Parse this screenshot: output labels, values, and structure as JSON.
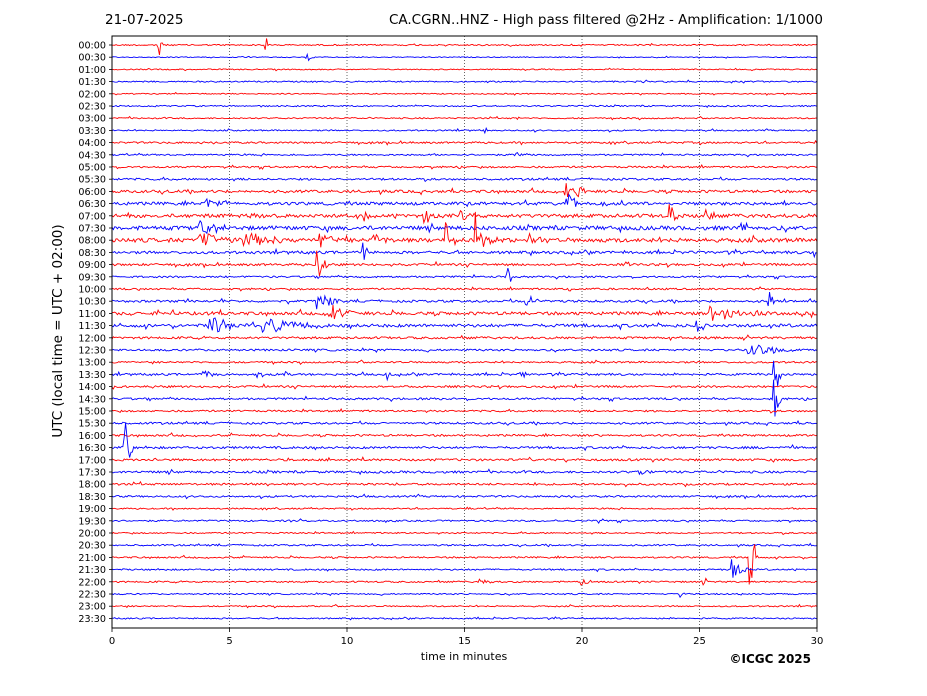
{
  "header": {
    "date": "21-07-2025",
    "title": "CA.CGRN..HNZ - High pass filtered @2Hz - Amplification: 1/1000"
  },
  "footer": {
    "copyright": "©ICGC 2025"
  },
  "chart_data": {
    "type": "line",
    "subtype": "helicorder",
    "xlabel": "time in minutes",
    "ylabel": "UTC (local time = UTC + 02:00)",
    "xlim": [
      0,
      30
    ],
    "xticks": [
      0,
      5,
      10,
      15,
      20,
      25,
      30
    ],
    "grid": "vertical dotted at every 5 minutes",
    "colors": {
      "even_rows": "#ff0000",
      "odd_rows": "#0000ff"
    },
    "rows": [
      "00:00",
      "00:30",
      "01:00",
      "01:30",
      "02:00",
      "02:30",
      "03:00",
      "03:30",
      "04:00",
      "04:30",
      "05:00",
      "05:30",
      "06:00",
      "06:30",
      "07:00",
      "07:30",
      "08:00",
      "08:30",
      "09:00",
      "09:30",
      "10:00",
      "10:30",
      "11:00",
      "11:30",
      "12:00",
      "12:30",
      "13:00",
      "13:30",
      "14:00",
      "14:30",
      "15:00",
      "15:30",
      "16:00",
      "16:30",
      "17:00",
      "17:30",
      "18:00",
      "18:30",
      "19:00",
      "19:30",
      "20:00",
      "20:30",
      "21:00",
      "21:30",
      "22:00",
      "22:30",
      "23:00",
      "23:30"
    ],
    "noise_level": [
      0.3,
      0.2,
      0.25,
      0.3,
      0.25,
      0.3,
      0.3,
      0.3,
      0.4,
      0.35,
      0.4,
      0.45,
      0.6,
      0.7,
      0.8,
      0.9,
      0.9,
      0.6,
      0.5,
      0.4,
      0.4,
      0.5,
      0.7,
      0.7,
      0.5,
      0.45,
      0.4,
      0.45,
      0.45,
      0.45,
      0.4,
      0.45,
      0.45,
      0.5,
      0.5,
      0.5,
      0.45,
      0.4,
      0.3,
      0.35,
      0.3,
      0.35,
      0.35,
      0.35,
      0.35,
      0.3,
      0.3,
      0.3
    ],
    "events": [
      {
        "row": "00:00",
        "t": 2.0,
        "amp": 5.0,
        "dur": 0.15
      },
      {
        "row": "00:00",
        "t": 6.5,
        "amp": 6.0,
        "dur": 0.1
      },
      {
        "row": "00:30",
        "t": 8.3,
        "amp": 0.8,
        "dur": 0.3
      },
      {
        "row": "02:30",
        "t": 19.8,
        "amp": 0.3,
        "dur": 0.2
      },
      {
        "row": "03:00",
        "t": 17.3,
        "amp": 0.3,
        "dur": 0.3
      },
      {
        "row": "03:30",
        "t": 15.9,
        "amp": 0.5,
        "dur": 0.2
      },
      {
        "row": "04:30",
        "t": 17.2,
        "amp": 0.5,
        "dur": 0.3
      },
      {
        "row": "06:00",
        "t": 19.4,
        "amp": 1.2,
        "dur": 0.5
      },
      {
        "row": "06:00",
        "t": 19.9,
        "amp": 1.0,
        "dur": 0.5
      },
      {
        "row": "06:30",
        "t": 19.5,
        "amp": 1.5,
        "dur": 0.6
      },
      {
        "row": "06:30",
        "t": 4.2,
        "amp": 0.6,
        "dur": 0.8
      },
      {
        "row": "07:00",
        "t": 6.0,
        "amp": 0.8,
        "dur": 0.6
      },
      {
        "row": "07:00",
        "t": 10.9,
        "amp": 1.0,
        "dur": 0.6
      },
      {
        "row": "07:00",
        "t": 13.5,
        "amp": 1.0,
        "dur": 0.8
      },
      {
        "row": "07:00",
        "t": 15.0,
        "amp": 0.8,
        "dur": 0.6
      },
      {
        "row": "07:00",
        "t": 23.8,
        "amp": 2.0,
        "dur": 0.3
      },
      {
        "row": "07:00",
        "t": 25.3,
        "amp": 2.0,
        "dur": 0.3
      },
      {
        "row": "07:30",
        "t": 4.0,
        "amp": 1.0,
        "dur": 1.2
      },
      {
        "row": "07:30",
        "t": 26.8,
        "amp": 1.5,
        "dur": 0.2
      },
      {
        "row": "08:00",
        "t": 4.0,
        "amp": 1.0,
        "dur": 1.5
      },
      {
        "row": "08:00",
        "t": 6.0,
        "amp": 1.0,
        "dur": 1.5
      },
      {
        "row": "08:00",
        "t": 9.0,
        "amp": 1.2,
        "dur": 1.0
      },
      {
        "row": "08:00",
        "t": 11.2,
        "amp": 1.4,
        "dur": 0.6
      },
      {
        "row": "08:00",
        "t": 15.8,
        "amp": 1.4,
        "dur": 0.6
      },
      {
        "row": "08:00",
        "t": 18.0,
        "amp": 0.8,
        "dur": 0.8
      },
      {
        "row": "08:00",
        "t": 14.2,
        "amp": 5.0,
        "dur": 0.15
      },
      {
        "row": "08:00",
        "t": 15.5,
        "amp": 6.0,
        "dur": 0.15
      },
      {
        "row": "08:30",
        "t": 10.7,
        "amp": 3.5,
        "dur": 0.2
      },
      {
        "row": "08:30",
        "t": 29.9,
        "amp": 0.8,
        "dur": 0.2
      },
      {
        "row": "09:00",
        "t": 8.8,
        "amp": 3.0,
        "dur": 0.4
      },
      {
        "row": "09:00",
        "t": 21.9,
        "amp": 0.6,
        "dur": 0.3
      },
      {
        "row": "09:30",
        "t": 16.8,
        "amp": 6.0,
        "dur": 0.2
      },
      {
        "row": "10:00",
        "t": 19.5,
        "amp": 0.6,
        "dur": 0.2
      },
      {
        "row": "10:30",
        "t": 9.0,
        "amp": 1.2,
        "dur": 1.0
      },
      {
        "row": "10:30",
        "t": 17.8,
        "amp": 1.0,
        "dur": 0.8
      },
      {
        "row": "10:30",
        "t": 28.0,
        "amp": 1.5,
        "dur": 0.3
      },
      {
        "row": "11:00",
        "t": 9.5,
        "amp": 1.2,
        "dur": 1.0
      },
      {
        "row": "11:00",
        "t": 26.0,
        "amp": 1.0,
        "dur": 2.0
      },
      {
        "row": "11:00",
        "t": 4.0,
        "amp": 1.0,
        "dur": 0.3
      },
      {
        "row": "11:30",
        "t": 4.5,
        "amp": 1.2,
        "dur": 1.5
      },
      {
        "row": "11:30",
        "t": 7.0,
        "amp": 1.2,
        "dur": 2.0
      },
      {
        "row": "11:30",
        "t": 25.0,
        "amp": 1.0,
        "dur": 0.6
      },
      {
        "row": "12:30",
        "t": 27.5,
        "amp": 1.0,
        "dur": 1.5
      },
      {
        "row": "13:30",
        "t": 4.0,
        "amp": 0.8,
        "dur": 0.6
      },
      {
        "row": "13:30",
        "t": 6.2,
        "amp": 1.0,
        "dur": 0.2
      },
      {
        "row": "13:30",
        "t": 7.3,
        "amp": 1.0,
        "dur": 0.2
      },
      {
        "row": "13:30",
        "t": 11.7,
        "amp": 1.0,
        "dur": 0.2
      },
      {
        "row": "13:30",
        "t": 17.4,
        "amp": 1.0,
        "dur": 0.3
      },
      {
        "row": "13:30",
        "t": 28.2,
        "amp": 6.0,
        "dur": 0.3
      },
      {
        "row": "14:30",
        "t": 28.2,
        "amp": 4.0,
        "dur": 0.3
      },
      {
        "row": "16:30",
        "t": 0.6,
        "amp": 6.0,
        "dur": 0.3
      },
      {
        "row": "17:30",
        "t": 22.5,
        "amp": 0.5,
        "dur": 0.6
      },
      {
        "row": "19:30",
        "t": 20.8,
        "amp": 0.5,
        "dur": 0.3
      },
      {
        "row": "21:00",
        "t": 27.2,
        "amp": 6.0,
        "dur": 0.3
      },
      {
        "row": "21:30",
        "t": 26.5,
        "amp": 2.5,
        "dur": 0.6
      },
      {
        "row": "22:00",
        "t": 20.0,
        "amp": 0.8,
        "dur": 0.5
      },
      {
        "row": "22:00",
        "t": 15.8,
        "amp": 0.6,
        "dur": 0.6
      },
      {
        "row": "22:00",
        "t": 25.2,
        "amp": 0.6,
        "dur": 0.4
      },
      {
        "row": "22:30",
        "t": 24.2,
        "amp": 0.6,
        "dur": 0.2
      }
    ]
  }
}
